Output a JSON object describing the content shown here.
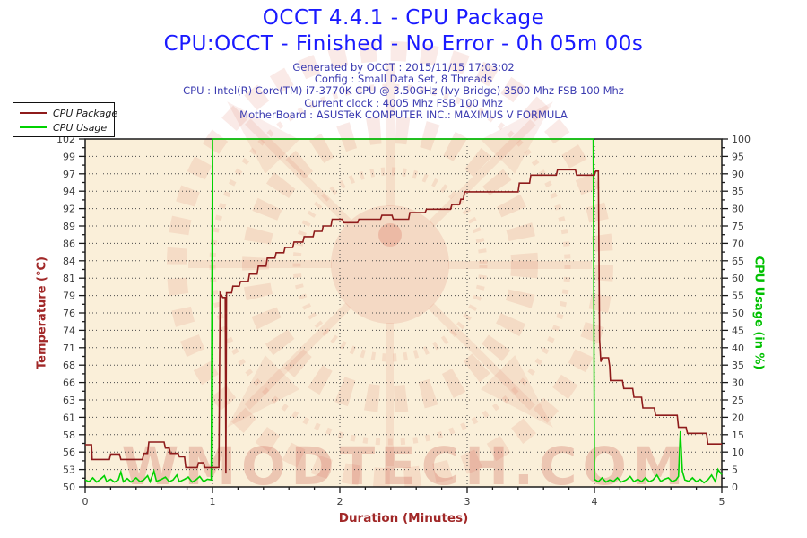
{
  "header": {
    "title_line1": "OCCT 4.4.1 - CPU Package",
    "title_line2": "CPU:OCCT - Finished - No Error - 0h 05m 00s",
    "info_lines": [
      "Generated by OCCT : 2015/11/15 17:03:02",
      "Config : Small Data Set, 8 Threads",
      "CPU : Intel(R) Core(TM) i7-3770K CPU @ 3.50GHz (Ivy Bridge) 3500 Mhz FSB 100 Mhz",
      "Current clock : 4005 Mhz FSB 100 Mhz",
      "MotherBoard : ASUSTeK COMPUTER INC.: MAXIMUS V FORMULA"
    ]
  },
  "watermark": {
    "text": "WMODTECH.COM"
  },
  "colors": {
    "title": "#1a1aff",
    "info_text": "#3a3ab0",
    "tick_text": "#3c3c3c",
    "temp_red": "#8e1b1b",
    "usage_green": "#00d200",
    "axis_title_red": "#a12828",
    "axis_title_green": "#00c000",
    "plot_bg": "#faefd9",
    "frame": "#1a1a1a",
    "grid": "#4a4a4a",
    "watermark_shape": "#d96a57",
    "watermark_text": "#c4473a"
  },
  "chart_data": {
    "type": "line",
    "x_label": "Duration (Minutes)",
    "y_left_label": "Temperature (°C)",
    "y_right_label": "CPU Usage (in %)",
    "x_range": [
      0,
      5
    ],
    "y_left_range": [
      50,
      102
    ],
    "y_right_range": [
      0,
      100
    ],
    "x_major_ticks": [
      0,
      1,
      2,
      3,
      4,
      5
    ],
    "x_minor_step": 0.2,
    "y_left_tick_labels": [
      "102",
      "99",
      "97",
      "94",
      "92",
      "89",
      "86",
      "84",
      "81",
      "79",
      "76",
      "74",
      "71",
      "68",
      "66",
      "63",
      "61",
      "58",
      "56",
      "53",
      "50"
    ],
    "y_right_tick_labels": [
      "100",
      "95",
      "90",
      "85",
      "80",
      "75",
      "70",
      "65",
      "60",
      "55",
      "50",
      "45",
      "40",
      "35",
      "30",
      "25",
      "20",
      "15",
      "10",
      "5",
      "0"
    ],
    "grid": {
      "horizontal_dotted": true,
      "vertical_dotted_at": [
        1,
        2,
        3,
        4
      ]
    },
    "legend_position": "top-left",
    "series": [
      {
        "name": "CPU Package",
        "axis": "left",
        "unit": "°C",
        "points": [
          [
            0,
            56.3
          ],
          [
            0.05,
            56.3
          ],
          [
            0.055,
            54.1
          ],
          [
            0.19,
            54.1
          ],
          [
            0.2,
            54.9
          ],
          [
            0.27,
            54.9
          ],
          [
            0.28,
            54.1
          ],
          [
            0.45,
            54.1
          ],
          [
            0.46,
            55
          ],
          [
            0.49,
            55
          ],
          [
            0.5,
            56.7
          ],
          [
            0.62,
            56.7
          ],
          [
            0.63,
            55.8
          ],
          [
            0.66,
            55.8
          ],
          [
            0.67,
            55
          ],
          [
            0.73,
            55
          ],
          [
            0.74,
            54.5
          ],
          [
            0.78,
            54.5
          ],
          [
            0.79,
            52.9
          ],
          [
            0.88,
            52.9
          ],
          [
            0.89,
            53.6
          ],
          [
            0.93,
            53.6
          ],
          [
            0.94,
            52.9
          ],
          [
            1.05,
            52.9
          ],
          [
            1.06,
            79
          ],
          [
            1.08,
            78.3
          ],
          [
            1.1,
            78.3
          ],
          [
            1.105,
            52
          ],
          [
            1.11,
            79
          ],
          [
            1.15,
            79
          ],
          [
            1.16,
            80
          ],
          [
            1.21,
            80
          ],
          [
            1.22,
            80.7
          ],
          [
            1.28,
            80.7
          ],
          [
            1.29,
            81.8
          ],
          [
            1.35,
            81.8
          ],
          [
            1.36,
            83
          ],
          [
            1.42,
            83
          ],
          [
            1.43,
            84.2
          ],
          [
            1.49,
            84.2
          ],
          [
            1.5,
            85
          ],
          [
            1.56,
            85
          ],
          [
            1.57,
            85.8
          ],
          [
            1.63,
            85.8
          ],
          [
            1.64,
            86.6
          ],
          [
            1.71,
            86.6
          ],
          [
            1.72,
            87.4
          ],
          [
            1.79,
            87.4
          ],
          [
            1.8,
            88.2
          ],
          [
            1.86,
            88.2
          ],
          [
            1.87,
            89
          ],
          [
            1.93,
            89
          ],
          [
            1.94,
            90
          ],
          [
            2.02,
            90
          ],
          [
            2.03,
            89.5
          ],
          [
            2.14,
            89.5
          ],
          [
            2.15,
            90
          ],
          [
            2.32,
            90
          ],
          [
            2.33,
            90.6
          ],
          [
            2.41,
            90.6
          ],
          [
            2.42,
            90
          ],
          [
            2.54,
            90
          ],
          [
            2.55,
            91
          ],
          [
            2.67,
            91
          ],
          [
            2.68,
            91.5
          ],
          [
            2.87,
            91.5
          ],
          [
            2.88,
            92.2
          ],
          [
            2.94,
            92.2
          ],
          [
            2.95,
            93
          ],
          [
            2.97,
            93
          ],
          [
            2.98,
            94.1
          ],
          [
            3.4,
            94.1
          ],
          [
            3.41,
            95.4
          ],
          [
            3.49,
            95.4
          ],
          [
            3.5,
            96.6
          ],
          [
            3.7,
            96.6
          ],
          [
            3.71,
            97.4
          ],
          [
            3.85,
            97.4
          ],
          [
            3.86,
            96.6
          ],
          [
            4.0,
            96.6
          ],
          [
            4.01,
            97.2
          ],
          [
            4.03,
            97.2
          ],
          [
            4.04,
            72
          ],
          [
            4.05,
            68.7
          ],
          [
            4.06,
            69.3
          ],
          [
            4.11,
            69.3
          ],
          [
            4.12,
            68
          ],
          [
            4.125,
            65.9
          ],
          [
            4.22,
            65.9
          ],
          [
            4.23,
            64.7
          ],
          [
            4.3,
            64.7
          ],
          [
            4.31,
            63.4
          ],
          [
            4.37,
            63.4
          ],
          [
            4.38,
            61.8
          ],
          [
            4.47,
            61.8
          ],
          [
            4.48,
            60.7
          ],
          [
            4.65,
            60.7
          ],
          [
            4.66,
            58.9
          ],
          [
            4.72,
            58.9
          ],
          [
            4.73,
            58
          ],
          [
            4.88,
            58
          ],
          [
            4.89,
            56.4
          ],
          [
            5,
            56.4
          ]
        ]
      },
      {
        "name": "CPU Usage",
        "axis": "right",
        "unit": "%",
        "points": [
          [
            0,
            2
          ],
          [
            0.03,
            1.5
          ],
          [
            0.06,
            2.6
          ],
          [
            0.09,
            1.4
          ],
          [
            0.12,
            2.2
          ],
          [
            0.15,
            3.2
          ],
          [
            0.17,
            1.5
          ],
          [
            0.2,
            2.2
          ],
          [
            0.23,
            1.4
          ],
          [
            0.26,
            2
          ],
          [
            0.28,
            4.3
          ],
          [
            0.3,
            1.5
          ],
          [
            0.33,
            2.4
          ],
          [
            0.36,
            1.4
          ],
          [
            0.4,
            2.6
          ],
          [
            0.43,
            1.5
          ],
          [
            0.46,
            2
          ],
          [
            0.49,
            3.2
          ],
          [
            0.51,
            1.5
          ],
          [
            0.54,
            4.5
          ],
          [
            0.56,
            1.6
          ],
          [
            0.6,
            2.2
          ],
          [
            0.63,
            2.8
          ],
          [
            0.66,
            1.5
          ],
          [
            0.69,
            2
          ],
          [
            0.72,
            3.4
          ],
          [
            0.74,
            1.5
          ],
          [
            0.78,
            2.2
          ],
          [
            0.81,
            2.8
          ],
          [
            0.84,
            1.4
          ],
          [
            0.87,
            2
          ],
          [
            0.9,
            3
          ],
          [
            0.93,
            1.5
          ],
          [
            0.96,
            2.2
          ],
          [
            0.99,
            2
          ],
          [
            1,
            100
          ],
          [
            3.99,
            100
          ],
          [
            4,
            2.2
          ],
          [
            4.03,
            1.5
          ],
          [
            4.06,
            2.6
          ],
          [
            4.09,
            1.4
          ],
          [
            4.12,
            2
          ],
          [
            4.15,
            1.6
          ],
          [
            4.18,
            2.6
          ],
          [
            4.21,
            1.4
          ],
          [
            4.25,
            2
          ],
          [
            4.28,
            3
          ],
          [
            4.31,
            1.5
          ],
          [
            4.34,
            2.2
          ],
          [
            4.37,
            1.5
          ],
          [
            4.4,
            2.6
          ],
          [
            4.43,
            1.5
          ],
          [
            4.46,
            2
          ],
          [
            4.49,
            3.4
          ],
          [
            4.52,
            1.6
          ],
          [
            4.55,
            2.2
          ],
          [
            4.58,
            2.6
          ],
          [
            4.61,
            1.5
          ],
          [
            4.64,
            2
          ],
          [
            4.66,
            3
          ],
          [
            4.675,
            16
          ],
          [
            4.69,
            4.5
          ],
          [
            4.71,
            2
          ],
          [
            4.74,
            1.6
          ],
          [
            4.77,
            2.6
          ],
          [
            4.8,
            1.5
          ],
          [
            4.83,
            2.2
          ],
          [
            4.86,
            1.2
          ],
          [
            4.89,
            2
          ],
          [
            4.92,
            3.4
          ],
          [
            4.95,
            1.5
          ],
          [
            4.97,
            5
          ],
          [
            5,
            3.5
          ]
        ]
      }
    ]
  }
}
